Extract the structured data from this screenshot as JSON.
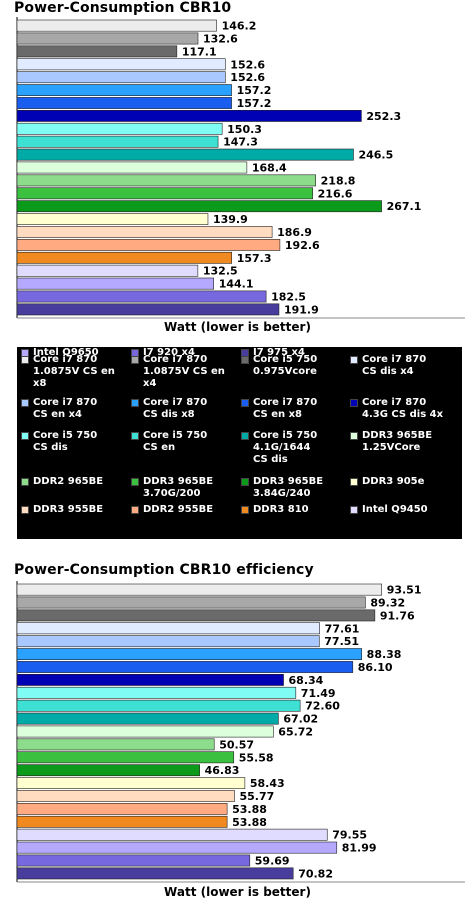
{
  "charts": [
    {
      "title": "Power-Consumption CBR10",
      "xlabel": "Watt (lower is better)"
    },
    {
      "title": "Power-Consumption CBR10 efficiency",
      "xlabel": "Watt (lower is better)"
    }
  ],
  "legend": [
    {
      "label": "Core i7 870\n1.0875V CS en\nx8",
      "color": "#ececec"
    },
    {
      "label": "Core i7 870\n1.0875V CS en\nx4",
      "color": "#a8a8a8"
    },
    {
      "label": "Core i5 750\n0.975Vcore",
      "color": "#6a6a6a"
    },
    {
      "label": "Core i7 870\nCS dis x4",
      "color": "#e0ebff"
    },
    {
      "label": "Core i7 870\nCS en x4",
      "color": "#a8c8ff"
    },
    {
      "label": "Core i7 870\nCS dis x8",
      "color": "#2aa0ff"
    },
    {
      "label": "Core i7 870\nCS en x8",
      "color": "#1a5ef0"
    },
    {
      "label": "Core i7 870\n4.3G CS dis 4x",
      "color": "#0000b4"
    },
    {
      "label": "Core i5 750\nCS dis",
      "color": "#7ffcf4"
    },
    {
      "label": "Core i5 750\nCS en",
      "color": "#3ee0d4"
    },
    {
      "label": "Core i5 750\n4.1G/1644\nCS dis",
      "color": "#00aaa6"
    },
    {
      "label": "DDR3 965BE\n1.25VCore",
      "color": "#dcffdc"
    },
    {
      "label": "DDR2 965BE",
      "color": "#8cdc8c"
    },
    {
      "label": "DDR3 965BE\n3.70G/200",
      "color": "#3cc040"
    },
    {
      "label": "DDR3 965BE\n3.84G/240",
      "color": "#0c9a1a"
    },
    {
      "label": "DDR3 905e",
      "color": "#ffffd0"
    },
    {
      "label": "DDR3 955BE",
      "color": "#ffdcc0"
    },
    {
      "label": "DDR2 955BE",
      "color": "#ffaa80"
    },
    {
      "label": "DDR3 810",
      "color": "#f08a20"
    },
    {
      "label": "Intel Q9450",
      "color": "#e0dcff"
    },
    {
      "label": "Intel Q9650",
      "color": "#b4a8ff"
    },
    {
      "label": "I7 920 x4",
      "color": "#7868e0"
    },
    {
      "label": "I7 975 x4",
      "color": "#483c9c"
    }
  ],
  "chart_data": [
    {
      "type": "bar",
      "orientation": "horizontal",
      "title": "Power-Consumption CBR10",
      "xlabel": "Watt (lower is better)",
      "xlim": [
        0,
        280
      ],
      "grid": false,
      "categories": [
        "Core i7 870 1.0875V CS en x8",
        "Core i7 870 1.0875V CS en x4",
        "Core i5 750 0.975Vcore",
        "Core i7 870 CS dis x4",
        "Core i7 870 CS en x4",
        "Core i7 870 CS dis x8",
        "Core i7 870 CS en x8",
        "Core i7 870 4.3G CS dis 4x",
        "Core i5 750 CS dis",
        "Core i5 750 CS en",
        "Core i5 750 4.1G/1644 CS dis",
        "DDR3 965BE 1.25VCore",
        "DDR2 965BE",
        "DDR3 965BE 3.70G/200",
        "DDR3 965BE 3.84G/240",
        "DDR3 905e",
        "DDR3 955BE",
        "DDR2 955BE",
        "DDR3 810",
        "Intel Q9450",
        "Intel Q9650",
        "I7 920 x4",
        "I7 975 x4"
      ],
      "values": [
        146.2,
        132.6,
        117.1,
        152.6,
        152.6,
        157.2,
        157.2,
        252.3,
        150.3,
        147.3,
        246.5,
        168.4,
        218.8,
        216.6,
        267.1,
        139.9,
        186.9,
        192.6,
        157.3,
        132.5,
        144.1,
        182.5,
        191.9
      ],
      "value_labels": [
        "146.2",
        "132.6",
        "117.1",
        "152.6",
        "152.6",
        "157.2",
        "157.2",
        "252.3",
        "150.3",
        "147.3",
        "246.5",
        "168.4",
        "218.8",
        "216.6",
        "267.1",
        "139.9",
        "186.9",
        "192.6",
        "157.3",
        "132.5",
        "144.1",
        "182.5",
        "191.9"
      ]
    },
    {
      "type": "bar",
      "orientation": "horizontal",
      "title": "Power-Consumption CBR10 efficiency",
      "xlabel": "Watt (lower is better)",
      "xlim": [
        0,
        100
      ],
      "grid": false,
      "categories": [
        "Core i7 870 1.0875V CS en x8",
        "Core i7 870 1.0875V CS en x4",
        "Core i5 750 0.975Vcore",
        "Core i7 870 CS dis x4",
        "Core i7 870 CS en x4",
        "Core i7 870 CS dis x8",
        "Core i7 870 CS en x8",
        "Core i7 870 4.3G CS dis 4x",
        "Core i5 750 CS dis",
        "Core i5 750 CS en",
        "Core i5 750 4.1G/1644 CS dis",
        "DDR3 965BE 1.25VCore",
        "DDR2 965BE",
        "DDR3 965BE 3.70G/200",
        "DDR3 965BE 3.84G/240",
        "DDR3 905e",
        "DDR3 955BE",
        "DDR2 955BE",
        "DDR3 810",
        "Intel Q9450",
        "Intel Q9650",
        "I7 920 x4",
        "I7 975 x4"
      ],
      "values": [
        93.51,
        89.32,
        91.76,
        77.61,
        77.51,
        88.38,
        86.1,
        68.34,
        71.49,
        72.6,
        67.02,
        65.72,
        50.57,
        55.58,
        46.83,
        58.43,
        55.77,
        53.88,
        53.88,
        79.55,
        81.99,
        59.69,
        70.82
      ],
      "value_labels": [
        "93.51",
        "89.32",
        "91.76",
        "77.61",
        "77.51",
        "88.38",
        "86.10",
        "68.34",
        "71.49",
        "72.60",
        "67.02",
        "65.72",
        "50.57",
        "55.58",
        "46.83",
        "58.43",
        "55.77",
        "53.88",
        "53.88",
        "79.55",
        "81.99",
        "59.69",
        "70.82"
      ]
    }
  ]
}
